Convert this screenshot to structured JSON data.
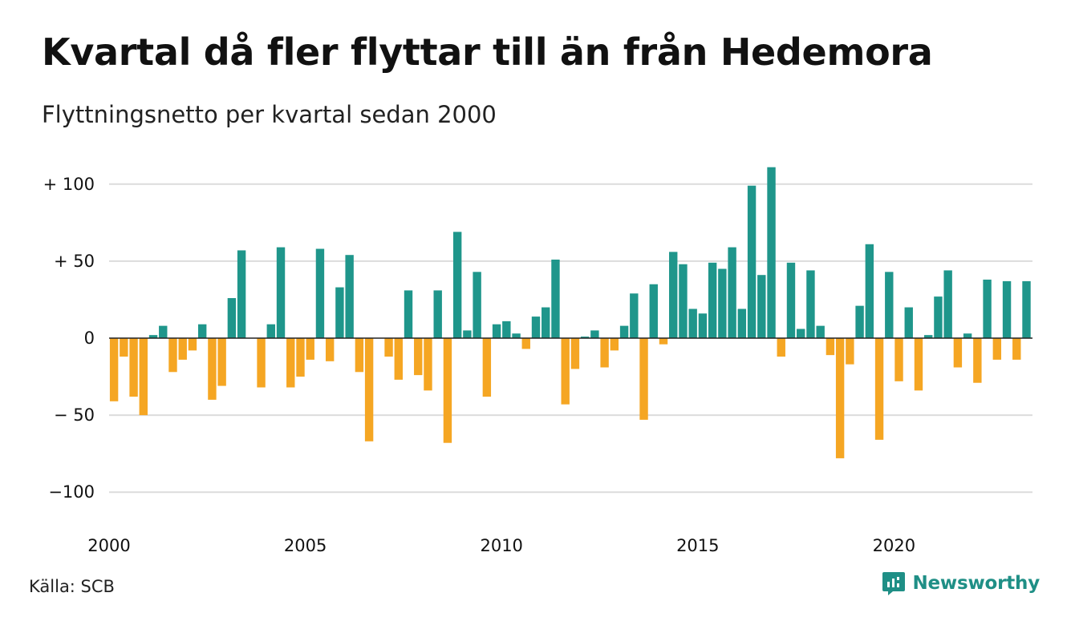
{
  "title": "Kvartal då fler flyttar till än från Hedemora",
  "subtitle": "Flyttningsnetto per kvartal sedan 2000",
  "source": "Källa: SCB",
  "brand": {
    "name": "Newsworthy",
    "icon": "newsworthy-logo-icon"
  },
  "colors": {
    "positive": "#1f968b",
    "negative": "#f5a623",
    "grid": "#dcdcdc",
    "zero_line": "#222222"
  },
  "chart_data": {
    "type": "bar",
    "title": "Kvartal då fler flyttar till än från Hedemora",
    "subtitle": "Flyttningsnetto per kvartal sedan 2000",
    "xlabel": "",
    "ylabel": "",
    "ylim": [
      -110,
      112
    ],
    "y_ticks": [
      {
        "value": 100,
        "label": "+ 100"
      },
      {
        "value": 50,
        "label": "+  50"
      },
      {
        "value": 0,
        "label": "0"
      },
      {
        "value": -50,
        "label": "− 50"
      },
      {
        "value": -100,
        "label": "−100"
      }
    ],
    "x_ticks": [
      "2000",
      "2005",
      "2010",
      "2015",
      "2020"
    ],
    "grid": true,
    "legend": "none",
    "series": [
      {
        "values": [
          -41,
          -12,
          -38,
          -50,
          2,
          8,
          -22,
          -14,
          -8,
          9,
          -40,
          -31,
          26,
          57,
          0,
          -32,
          9,
          59,
          -32,
          -25,
          -14,
          58,
          -15,
          33,
          54,
          -22,
          -67,
          0,
          -12,
          -27,
          31,
          -24,
          -34,
          31,
          -68,
          69,
          5,
          43,
          -38,
          9,
          11,
          3,
          -7,
          14,
          20,
          51,
          -43,
          -20,
          1,
          5,
          -19,
          -8,
          8,
          29,
          -53,
          35,
          -4,
          56,
          48,
          19,
          16,
          49,
          45,
          59,
          19,
          99,
          41,
          111,
          -12,
          49,
          6,
          44,
          8,
          -11,
          -78,
          -17,
          21,
          61,
          -66,
          43,
          -28,
          20,
          -34,
          2,
          27,
          44,
          -19,
          3,
          -29,
          38,
          -14,
          37,
          -14,
          37
        ]
      }
    ]
  }
}
